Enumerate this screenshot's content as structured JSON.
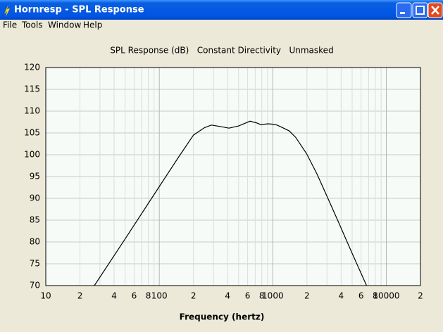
{
  "window": {
    "title": "Hornresp - SPL Response"
  },
  "menu": [
    "File",
    "Tools",
    "Window",
    "Help"
  ],
  "chart_data": {
    "type": "line",
    "title": "SPL Response (dB)   Constant Directivity   Unmasked",
    "x_label": "Frequency (hertz)",
    "x_scale": "log",
    "grid": true,
    "xlim": [
      10,
      20000
    ],
    "ylim": [
      70,
      120
    ],
    "yticks": [
      70,
      75,
      80,
      85,
      90,
      95,
      100,
      105,
      110,
      115,
      120
    ],
    "xticks": [
      10,
      {
        "value": 20,
        "label": "2"
      },
      {
        "value": 30,
        "label": null
      },
      {
        "value": 40,
        "label": "4"
      },
      {
        "value": 50,
        "label": null
      },
      {
        "value": 60,
        "label": "6"
      },
      {
        "value": 70,
        "label": null
      },
      {
        "value": 80,
        "label": "8"
      },
      {
        "value": 90,
        "label": null
      },
      100,
      {
        "value": 200,
        "label": "2"
      },
      {
        "value": 300,
        "label": null
      },
      {
        "value": 400,
        "label": "4"
      },
      {
        "value": 500,
        "label": null
      },
      {
        "value": 600,
        "label": "6"
      },
      {
        "value": 700,
        "label": null
      },
      {
        "value": 800,
        "label": "8"
      },
      {
        "value": 900,
        "label": null
      },
      1000,
      {
        "value": 2000,
        "label": "2"
      },
      {
        "value": 3000,
        "label": null
      },
      {
        "value": 4000,
        "label": "4"
      },
      {
        "value": 5000,
        "label": null
      },
      {
        "value": 6000,
        "label": "6"
      },
      {
        "value": 7000,
        "label": null
      },
      {
        "value": 8000,
        "label": "8"
      },
      {
        "value": 9000,
        "label": null
      },
      10000,
      {
        "value": 20000,
        "label": "2"
      }
    ],
    "x": [
      26.8,
      50,
      100,
      150,
      200,
      250,
      287,
      340,
      411,
      500,
      630,
      720,
      785,
      905,
      1000,
      1090,
      1200,
      1390,
      1590,
      1980,
      2460,
      3000,
      3770,
      5000,
      6700
    ],
    "series": [
      {
        "color": "#000000",
        "values": [
          70,
          80.7,
          92.7,
          99.7,
          104.5,
          106.2,
          106.8,
          106.5,
          106.1,
          106.6,
          107.7,
          107.3,
          106.9,
          107.1,
          107.0,
          106.8,
          106.3,
          105.5,
          104.0,
          100.3,
          95.5,
          90.5,
          84.7,
          77.4,
          70
        ]
      }
    ]
  }
}
